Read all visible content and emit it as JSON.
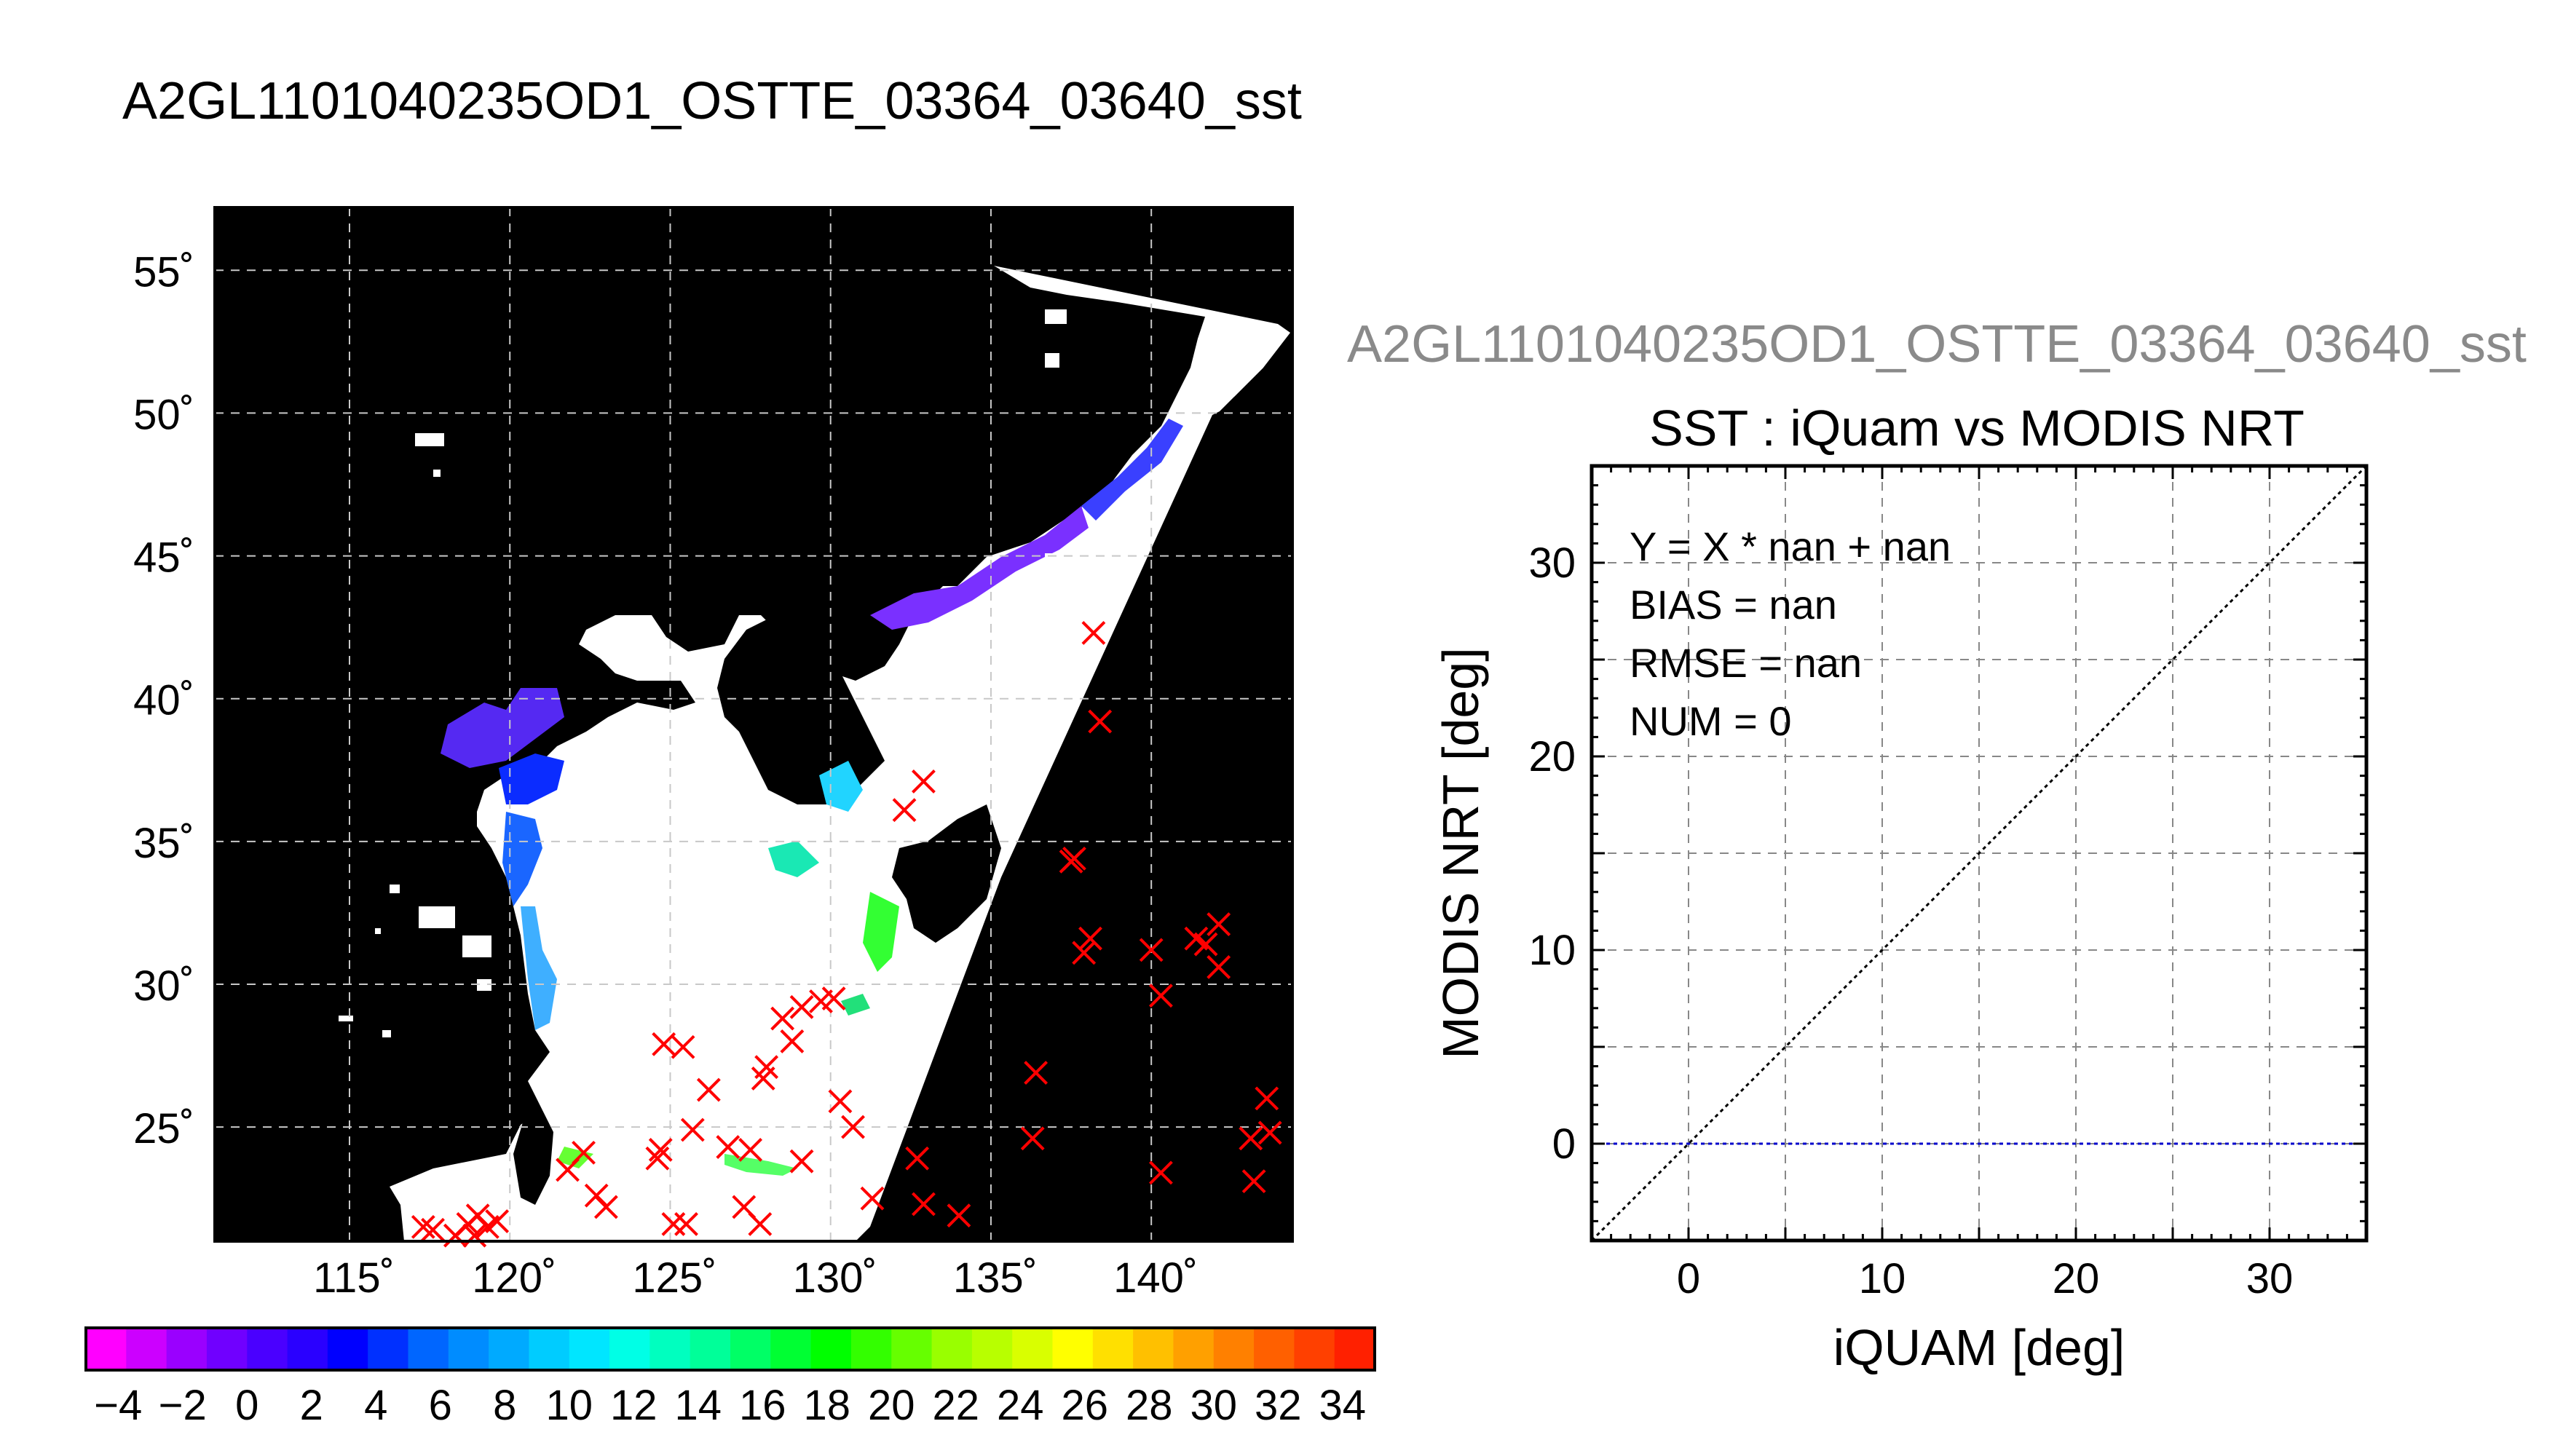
{
  "main_title": "A2GL1101040235OD1_OSTTE_03364_03640_sst",
  "scatter_file_title": "A2GL1101040235OD1_OSTTE_03364_03640_sst",
  "map": {
    "lat_ticks": [
      "55˚",
      "50˚",
      "45˚",
      "40˚",
      "35˚",
      "30˚",
      "25˚"
    ],
    "lon_ticks": [
      "115˚",
      "120˚",
      "125˚",
      "130˚",
      "135˚",
      "140˚"
    ],
    "lat_values": [
      55,
      50,
      45,
      40,
      35,
      30,
      25
    ],
    "lon_values": [
      115,
      120,
      125,
      130,
      135,
      140
    ],
    "lon_range": [
      110.8,
      144.4
    ],
    "lat_range": [
      21.0,
      57.2
    ],
    "marker_color": "#ff0000",
    "markers": [
      [
        138.2,
        42.3
      ],
      [
        138.4,
        39.2
      ],
      [
        132.9,
        37.1
      ],
      [
        132.3,
        36.1
      ],
      [
        137.5,
        34.3
      ],
      [
        137.6,
        34.4
      ],
      [
        138.1,
        31.6
      ],
      [
        137.9,
        31.1
      ],
      [
        140.0,
        31.2
      ],
      [
        141.4,
        31.6
      ],
      [
        141.7,
        31.4
      ],
      [
        142.1,
        32.1
      ],
      [
        142.1,
        30.6
      ],
      [
        140.3,
        29.6
      ],
      [
        130.1,
        29.5
      ],
      [
        129.7,
        29.4
      ],
      [
        129.1,
        29.2
      ],
      [
        128.5,
        28.8
      ],
      [
        128.8,
        28.0
      ],
      [
        128.0,
        27.1
      ],
      [
        127.9,
        26.7
      ],
      [
        130.3,
        25.9
      ],
      [
        130.7,
        25.0
      ],
      [
        124.8,
        27.9
      ],
      [
        125.4,
        27.8
      ],
      [
        126.2,
        26.3
      ],
      [
        136.4,
        26.9
      ],
      [
        136.3,
        24.6
      ],
      [
        132.7,
        23.9
      ],
      [
        132.9,
        22.3
      ],
      [
        134.0,
        21.9
      ],
      [
        131.3,
        22.5
      ],
      [
        129.1,
        23.8
      ],
      [
        127.5,
        24.2
      ],
      [
        126.8,
        24.3
      ],
      [
        125.7,
        24.9
      ],
      [
        124.7,
        24.2
      ],
      [
        124.6,
        23.9
      ],
      [
        122.3,
        24.1
      ],
      [
        121.8,
        23.5
      ],
      [
        122.7,
        22.6
      ],
      [
        123.0,
        22.2
      ],
      [
        125.1,
        21.6
      ],
      [
        125.5,
        21.6
      ],
      [
        127.3,
        22.2
      ],
      [
        127.8,
        21.6
      ],
      [
        140.3,
        23.4
      ],
      [
        143.6,
        26.0
      ],
      [
        143.7,
        24.8
      ],
      [
        143.1,
        24.6
      ],
      [
        143.2,
        23.1
      ],
      [
        117.3,
        21.5
      ],
      [
        117.6,
        21.4
      ],
      [
        118.3,
        21.2
      ],
      [
        118.7,
        21.6
      ],
      [
        119.0,
        21.9
      ],
      [
        119.3,
        21.5
      ],
      [
        119.6,
        21.7
      ],
      [
        118.9,
        21.2
      ]
    ]
  },
  "colorbar": {
    "tick_labels": [
      "−4",
      "−2",
      "0",
      "2",
      "4",
      "6",
      "8",
      "10",
      "12",
      "14",
      "16",
      "18",
      "20",
      "22",
      "24",
      "26",
      "28",
      "30",
      "32",
      "34"
    ],
    "range": [
      -5,
      35
    ],
    "colors": [
      "#ff00ff",
      "#cc00ff",
      "#9a00ff",
      "#7000ff",
      "#4a00ff",
      "#2a00ff",
      "#0000ff",
      "#0030ff",
      "#0066ff",
      "#008cff",
      "#00aaff",
      "#00ccff",
      "#00e6ff",
      "#00ffe6",
      "#00ffbf",
      "#00ff99",
      "#00ff66",
      "#00ff33",
      "#00ff00",
      "#33ff00",
      "#66ff00",
      "#99ff00",
      "#b8ff00",
      "#d9ff00",
      "#ffff00",
      "#ffe000",
      "#ffc000",
      "#ffa000",
      "#ff8000",
      "#ff6000",
      "#ff4000",
      "#ff2000"
    ]
  },
  "chart_data": {
    "type": "scatter",
    "title": "SST : iQuam vs MODIS NRT",
    "xlabel": "iQUAM [deg]",
    "ylabel": "MODIS NRT [deg]",
    "xlim": [
      -5,
      35
    ],
    "ylim": [
      -5,
      35
    ],
    "x_ticks": [
      0,
      10,
      20,
      30
    ],
    "y_ticks": [
      0,
      10,
      20,
      30
    ],
    "grid": true,
    "grid_step": 5,
    "points": [],
    "annotations": [
      "Y = X * nan + nan",
      "BIAS = nan",
      "RMSE = nan",
      "NUM = 0"
    ],
    "reference_lines": [
      {
        "kind": "identity",
        "color": "#000000"
      },
      {
        "kind": "horizontal",
        "y": 0,
        "color": "#0000cc"
      }
    ]
  }
}
